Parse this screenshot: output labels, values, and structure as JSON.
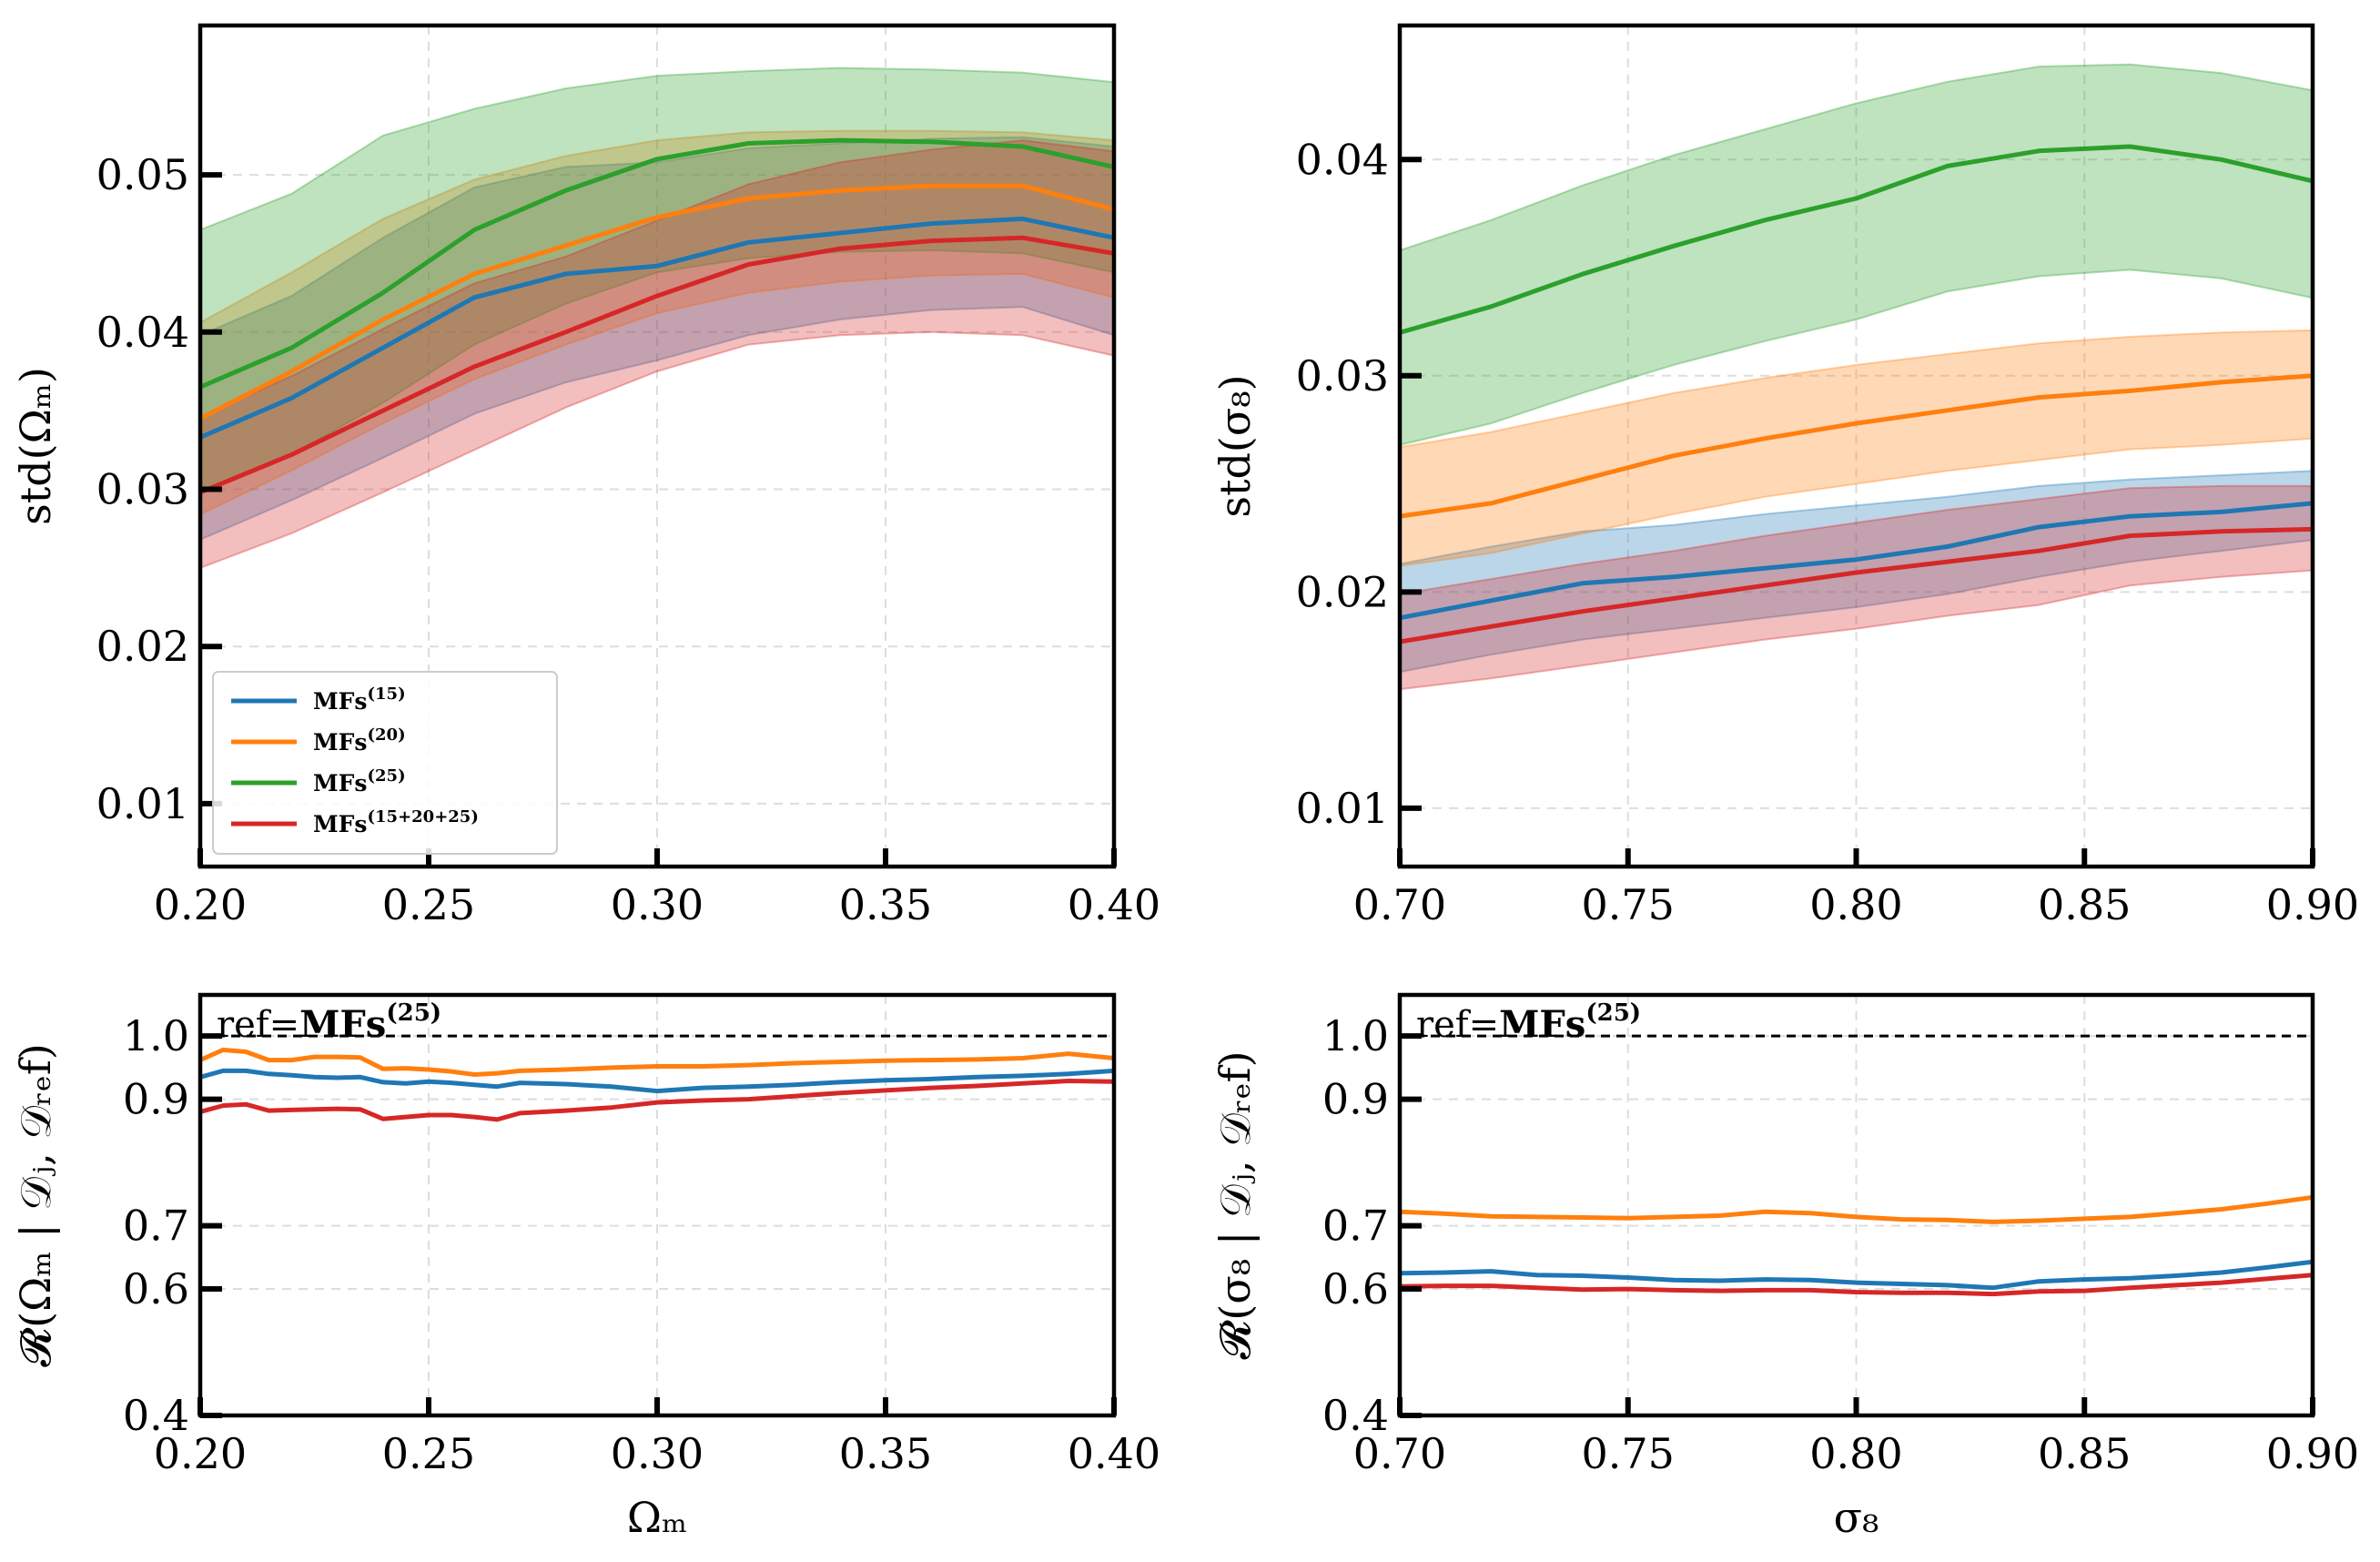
{
  "colors": {
    "blue": "#1f77b4",
    "orange": "#ff7f0e",
    "green": "#2ca02c",
    "red": "#d62728"
  },
  "chart_data": [
    {
      "id": "top-left",
      "type": "line",
      "band_type": "area",
      "xlabel": "",
      "ylabel": "std(Ω_m)",
      "xlim": [
        0.2,
        0.4
      ],
      "ylim": [
        0.006,
        0.0595
      ],
      "xticks": [
        0.2,
        0.25,
        0.3,
        0.35,
        0.4
      ],
      "xtick_labels": [
        "0.20",
        "0.25",
        "0.30",
        "0.35",
        "0.40"
      ],
      "yticks": [
        0.01,
        0.02,
        0.03,
        0.04,
        0.05
      ],
      "ytick_labels": [
        "0.01",
        "0.02",
        "0.03",
        "0.04",
        "0.05"
      ],
      "grid": true,
      "legend": {
        "position": "bottom-left",
        "entries": [
          "MFs(15)",
          "MFs(20)",
          "MFs(25)",
          "MFs(15+20+25)"
        ],
        "base": [
          "MFs",
          "MFs",
          "MFs",
          "MFs"
        ],
        "sup": [
          "(15)",
          "(20)",
          "(25)",
          "(15+20+25)"
        ]
      },
      "x": [
        0.2,
        0.22,
        0.24,
        0.26,
        0.28,
        0.3,
        0.32,
        0.34,
        0.36,
        0.38,
        0.4
      ],
      "series": [
        {
          "name": "MFs(15)",
          "color": "blue",
          "values": [
            0.0333,
            0.0358,
            0.039,
            0.0422,
            0.0437,
            0.0442,
            0.0457,
            0.0463,
            0.0469,
            0.0472,
            0.046
          ],
          "lower": [
            0.0268,
            0.0293,
            0.032,
            0.0348,
            0.0368,
            0.0382,
            0.0398,
            0.0408,
            0.0414,
            0.0416,
            0.0398
          ],
          "upper": [
            0.0398,
            0.0423,
            0.046,
            0.0492,
            0.0505,
            0.0508,
            0.0517,
            0.052,
            0.0523,
            0.0524,
            0.0518
          ]
        },
        {
          "name": "MFs(20)",
          "color": "orange",
          "values": [
            0.0345,
            0.0375,
            0.0408,
            0.0437,
            0.0455,
            0.0473,
            0.0485,
            0.049,
            0.0493,
            0.0493,
            0.0478
          ],
          "lower": [
            0.0284,
            0.0312,
            0.0342,
            0.037,
            0.0392,
            0.0412,
            0.0425,
            0.0432,
            0.0436,
            0.0437,
            0.0422
          ],
          "upper": [
            0.0406,
            0.0438,
            0.0472,
            0.0497,
            0.0512,
            0.0522,
            0.0527,
            0.0528,
            0.0528,
            0.0527,
            0.0522
          ]
        },
        {
          "name": "MFs(25)",
          "color": "green",
          "values": [
            0.0365,
            0.039,
            0.0425,
            0.0465,
            0.049,
            0.051,
            0.052,
            0.0522,
            0.0521,
            0.0518,
            0.0505
          ],
          "lower": [
            0.0298,
            0.0322,
            0.0355,
            0.0392,
            0.0418,
            0.0438,
            0.0447,
            0.0451,
            0.0452,
            0.045,
            0.0438
          ],
          "upper": [
            0.0465,
            0.0488,
            0.0525,
            0.0542,
            0.0555,
            0.0563,
            0.0566,
            0.0568,
            0.0567,
            0.0565,
            0.0559
          ]
        },
        {
          "name": "MFs(15+20+25)",
          "color": "red",
          "values": [
            0.0298,
            0.0322,
            0.035,
            0.0378,
            0.04,
            0.0423,
            0.0443,
            0.0453,
            0.0458,
            0.046,
            0.045
          ],
          "lower": [
            0.025,
            0.0272,
            0.0298,
            0.0325,
            0.0352,
            0.0375,
            0.0392,
            0.0398,
            0.04,
            0.0398,
            0.0385
          ],
          "upper": [
            0.0346,
            0.0372,
            0.0402,
            0.0431,
            0.0448,
            0.0471,
            0.0494,
            0.0508,
            0.0516,
            0.0522,
            0.0515
          ]
        }
      ]
    },
    {
      "id": "top-right",
      "type": "line",
      "band_type": "area",
      "xlabel": "",
      "ylabel": "std(σ_8)",
      "xlim": [
        0.7,
        0.9
      ],
      "ylim": [
        0.0073,
        0.0462
      ],
      "xticks": [
        0.7,
        0.75,
        0.8,
        0.85,
        0.9
      ],
      "xtick_labels": [
        "0.70",
        "0.75",
        "0.80",
        "0.85",
        "0.90"
      ],
      "yticks": [
        0.01,
        0.02,
        0.03,
        0.04
      ],
      "ytick_labels": [
        "0.01",
        "0.02",
        "0.03",
        "0.04"
      ],
      "grid": true,
      "x": [
        0.7,
        0.72,
        0.74,
        0.76,
        0.78,
        0.8,
        0.82,
        0.84,
        0.86,
        0.88,
        0.9
      ],
      "series": [
        {
          "name": "MFs(15)",
          "color": "blue",
          "values": [
            0.0188,
            0.0196,
            0.0204,
            0.0207,
            0.0211,
            0.0215,
            0.0221,
            0.023,
            0.0235,
            0.0237,
            0.0241
          ],
          "lower": [
            0.0163,
            0.0171,
            0.0178,
            0.0183,
            0.0188,
            0.0193,
            0.0199,
            0.0207,
            0.0214,
            0.0219,
            0.0224
          ],
          "upper": [
            0.0213,
            0.0221,
            0.0228,
            0.0231,
            0.0236,
            0.024,
            0.0244,
            0.0249,
            0.0252,
            0.0254,
            0.0256
          ]
        },
        {
          "name": "MFs(20)",
          "color": "orange",
          "values": [
            0.0235,
            0.0241,
            0.0252,
            0.0263,
            0.0271,
            0.0278,
            0.0284,
            0.029,
            0.0293,
            0.0297,
            0.03
          ],
          "lower": [
            0.0212,
            0.0218,
            0.0227,
            0.0236,
            0.0244,
            0.025,
            0.0256,
            0.0261,
            0.0266,
            0.0268,
            0.0271
          ],
          "upper": [
            0.0267,
            0.0274,
            0.0283,
            0.0292,
            0.0299,
            0.0305,
            0.031,
            0.0315,
            0.0318,
            0.032,
            0.0321
          ]
        },
        {
          "name": "MFs(25)",
          "color": "green",
          "values": [
            0.032,
            0.0332,
            0.0347,
            0.036,
            0.0372,
            0.0382,
            0.0397,
            0.0404,
            0.0406,
            0.04,
            0.039
          ],
          "lower": [
            0.0268,
            0.0278,
            0.0292,
            0.0305,
            0.0316,
            0.0326,
            0.0339,
            0.0346,
            0.0349,
            0.0345,
            0.0336
          ],
          "upper": [
            0.0358,
            0.0372,
            0.0388,
            0.0402,
            0.0414,
            0.0426,
            0.0436,
            0.0443,
            0.0444,
            0.044,
            0.0432
          ]
        },
        {
          "name": "MFs(15+20+25)",
          "color": "red",
          "values": [
            0.0177,
            0.0184,
            0.0191,
            0.0197,
            0.0203,
            0.0209,
            0.0214,
            0.0219,
            0.0226,
            0.0228,
            0.0229
          ],
          "lower": [
            0.0155,
            0.016,
            0.0166,
            0.0172,
            0.0178,
            0.0183,
            0.0189,
            0.0194,
            0.0203,
            0.0207,
            0.021
          ],
          "upper": [
            0.0199,
            0.0206,
            0.0213,
            0.0219,
            0.0226,
            0.0232,
            0.0238,
            0.0243,
            0.0248,
            0.0249,
            0.0249
          ]
        }
      ]
    },
    {
      "id": "bottom-left",
      "type": "line",
      "xlabel": "Ω_m",
      "ylabel": "R(Ω_m | D_j, D_ref)",
      "xlim": [
        0.2,
        0.4
      ],
      "ylim": [
        0.4,
        1.065
      ],
      "xticks": [
        0.2,
        0.25,
        0.3,
        0.35,
        0.4
      ],
      "xtick_labels": [
        "0.20",
        "0.25",
        "0.30",
        "0.35",
        "0.40"
      ],
      "yticks": [
        0.4,
        0.6,
        0.7,
        0.9,
        1.0
      ],
      "ytick_labels": [
        "0.4",
        "0.6",
        "0.7",
        "0.9",
        "1.0"
      ],
      "grid": true,
      "reference": {
        "y": 1.0,
        "label_prefix": "ref=",
        "label_base": "MFs",
        "label_sup": "(25)"
      },
      "x": [
        0.2,
        0.205,
        0.21,
        0.215,
        0.22,
        0.225,
        0.23,
        0.235,
        0.24,
        0.245,
        0.25,
        0.255,
        0.26,
        0.265,
        0.27,
        0.28,
        0.29,
        0.3,
        0.31,
        0.32,
        0.33,
        0.34,
        0.35,
        0.36,
        0.37,
        0.38,
        0.39,
        0.4
      ],
      "series": [
        {
          "name": "MFs(15)",
          "color": "blue",
          "values": [
            0.935,
            0.945,
            0.945,
            0.94,
            0.938,
            0.935,
            0.934,
            0.935,
            0.927,
            0.925,
            0.928,
            0.926,
            0.923,
            0.92,
            0.926,
            0.924,
            0.92,
            0.913,
            0.918,
            0.92,
            0.923,
            0.927,
            0.93,
            0.932,
            0.935,
            0.937,
            0.94,
            0.945
          ]
        },
        {
          "name": "MFs(20)",
          "color": "orange",
          "values": [
            0.962,
            0.978,
            0.975,
            0.962,
            0.962,
            0.967,
            0.967,
            0.966,
            0.948,
            0.949,
            0.947,
            0.944,
            0.939,
            0.941,
            0.945,
            0.947,
            0.95,
            0.952,
            0.952,
            0.954,
            0.957,
            0.959,
            0.961,
            0.962,
            0.963,
            0.965,
            0.972,
            0.965
          ]
        },
        {
          "name": "MFs(15+20+25)",
          "color": "red",
          "values": [
            0.88,
            0.89,
            0.892,
            0.882,
            0.883,
            0.884,
            0.885,
            0.884,
            0.869,
            0.872,
            0.875,
            0.875,
            0.872,
            0.868,
            0.878,
            0.882,
            0.887,
            0.895,
            0.898,
            0.9,
            0.905,
            0.91,
            0.914,
            0.918,
            0.921,
            0.925,
            0.929,
            0.928
          ]
        }
      ]
    },
    {
      "id": "bottom-right",
      "type": "line",
      "xlabel": "σ_8",
      "ylabel": "R(σ_8 | D_j, D_ref)",
      "xlim": [
        0.7,
        0.9
      ],
      "ylim": [
        0.4,
        1.065
      ],
      "xticks": [
        0.7,
        0.75,
        0.8,
        0.85,
        0.9
      ],
      "xtick_labels": [
        "0.70",
        "0.75",
        "0.80",
        "0.85",
        "0.90"
      ],
      "yticks": [
        0.4,
        0.6,
        0.7,
        0.9,
        1.0
      ],
      "ytick_labels": [
        "0.4",
        "0.6",
        "0.7",
        "0.9",
        "1.0"
      ],
      "grid": true,
      "reference": {
        "y": 1.0,
        "label_prefix": "ref=",
        "label_base": "MFs",
        "label_sup": "(25)"
      },
      "x": [
        0.7,
        0.71,
        0.72,
        0.73,
        0.74,
        0.75,
        0.76,
        0.77,
        0.78,
        0.79,
        0.8,
        0.81,
        0.82,
        0.83,
        0.84,
        0.85,
        0.86,
        0.87,
        0.88,
        0.89,
        0.9
      ],
      "series": [
        {
          "name": "MFs(15)",
          "color": "blue",
          "values": [
            0.625,
            0.626,
            0.628,
            0.622,
            0.621,
            0.618,
            0.614,
            0.613,
            0.615,
            0.614,
            0.61,
            0.608,
            0.606,
            0.602,
            0.612,
            0.615,
            0.617,
            0.621,
            0.626,
            0.634,
            0.643
          ]
        },
        {
          "name": "MFs(20)",
          "color": "orange",
          "values": [
            0.722,
            0.719,
            0.715,
            0.714,
            0.713,
            0.712,
            0.714,
            0.716,
            0.722,
            0.72,
            0.714,
            0.71,
            0.709,
            0.706,
            0.708,
            0.711,
            0.714,
            0.72,
            0.726,
            0.735,
            0.745
          ]
        },
        {
          "name": "MFs(15+20+25)",
          "color": "red",
          "values": [
            0.604,
            0.605,
            0.605,
            0.602,
            0.599,
            0.6,
            0.598,
            0.597,
            0.598,
            0.598,
            0.595,
            0.594,
            0.594,
            0.592,
            0.596,
            0.597,
            0.602,
            0.606,
            0.61,
            0.616,
            0.622
          ]
        }
      ]
    }
  ]
}
